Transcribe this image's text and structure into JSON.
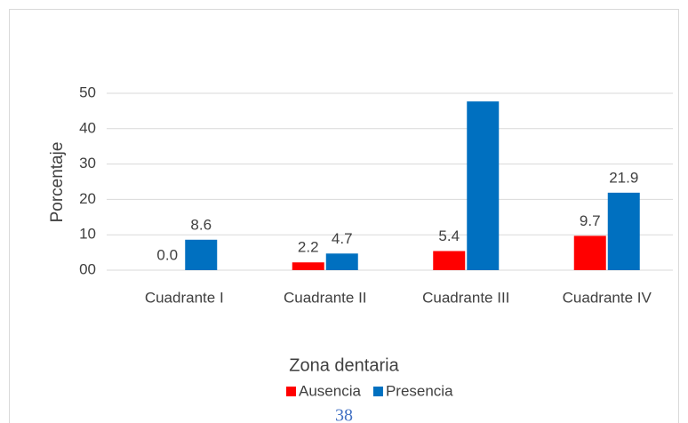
{
  "chart_data": {
    "type": "bar",
    "x_label": "Zona dentaria",
    "y_label": "Porcentaje",
    "categories": [
      "Cuadrante I",
      "Cuadrante II",
      "Cuadrante III",
      "Cuadrante IV"
    ],
    "series": [
      {
        "name": "Ausencia",
        "color": "#ff0000",
        "values": [
          0,
          2.2,
          5.4,
          9.7
        ],
        "value_labels": [
          "0.0",
          "2.2",
          "5.4",
          "9.7"
        ]
      },
      {
        "name": "Presencia",
        "color": "#0070c0",
        "values": [
          8.6,
          4.7,
          47.7,
          21.9
        ],
        "value_labels": [
          "8.6",
          "4.7",
          null,
          "21.9"
        ]
      }
    ],
    "ylim": [
      0,
      50
    ],
    "yticks": [
      {
        "value": 0,
        "label": "00"
      },
      10,
      20,
      30,
      40,
      50
    ],
    "grid": true,
    "legend": "bottom",
    "page_number": "38"
  }
}
